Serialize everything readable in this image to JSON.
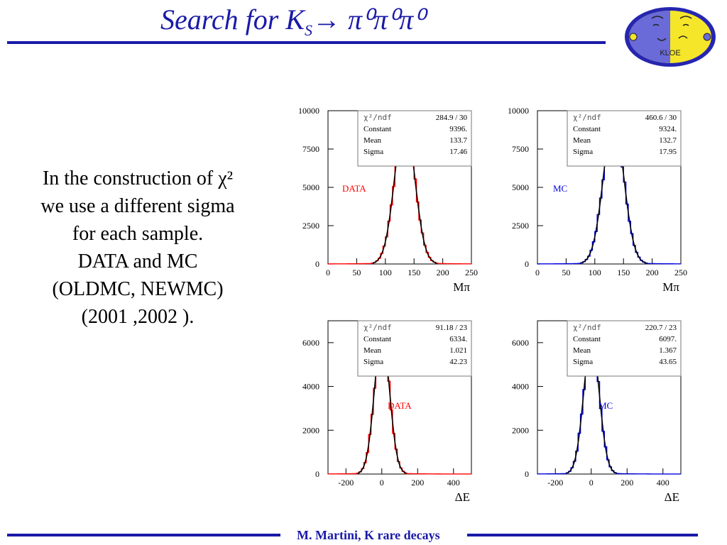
{
  "slide": {
    "title_main": "Search for K",
    "title_sub": "S",
    "title_tail": "→ π⁰π⁰π⁰",
    "body_lines": [
      "In the construction of χ²",
      "we use a different sigma",
      "for each  sample.",
      "DATA and MC",
      "(OLDMC, NEWMC)",
      "(2001 ,2002 )."
    ],
    "footer": "M. Martini, K rare decays",
    "colors": {
      "title": "#1a1aa8",
      "data": "#ff0000",
      "mc": "#0000dd",
      "fit": "#000000"
    }
  },
  "logo": {
    "text": "KLOE",
    "icon": "kloe-logo"
  },
  "chart_data": [
    {
      "type": "bar",
      "panel": "top-left",
      "label": "DATA",
      "label_color": "#ff0000",
      "series_color": "#ff0000",
      "xlabel": "Mπ",
      "xlim": [
        0,
        250
      ],
      "ylim": [
        0,
        10000
      ],
      "xticks": [
        0,
        50,
        100,
        150,
        200,
        250
      ],
      "yticks": [
        0,
        2500,
        5000,
        7500,
        10000
      ],
      "gaussian": {
        "constant": 9396,
        "mean": 133.7,
        "sigma": 17.46
      },
      "stats": [
        [
          "χ²/ndf",
          "284.9  /  30"
        ],
        [
          "Constant",
          "9396."
        ],
        [
          "Mean",
          "133.7"
        ],
        [
          "Sigma",
          "17.46"
        ]
      ]
    },
    {
      "type": "bar",
      "panel": "top-right",
      "label": "MC",
      "label_color": "#0000dd",
      "series_color": "#0000dd",
      "xlabel": "Mπ",
      "xlim": [
        0,
        250
      ],
      "ylim": [
        0,
        10000
      ],
      "xticks": [
        0,
        50,
        100,
        150,
        200,
        250
      ],
      "yticks": [
        0,
        2500,
        5000,
        7500,
        10000
      ],
      "gaussian": {
        "constant": 9324,
        "mean": 132.7,
        "sigma": 17.95
      },
      "stats": [
        [
          "χ²/ndf",
          "460.6  /  30"
        ],
        [
          "Constant",
          "9324."
        ],
        [
          "Mean",
          "132.7"
        ],
        [
          "Sigma",
          "17.95"
        ]
      ]
    },
    {
      "type": "bar",
      "panel": "bottom-left",
      "label": "DATA",
      "label_color": "#ff0000",
      "series_color": "#ff0000",
      "xlabel": "ΔE",
      "xlim": [
        -300,
        500
      ],
      "ylim": [
        0,
        7000
      ],
      "xticks": [
        -200,
        0,
        200,
        400
      ],
      "yticks": [
        0,
        2000,
        4000,
        6000
      ],
      "gaussian": {
        "constant": 6334,
        "mean": 1.021,
        "sigma": 42.23
      },
      "stats": [
        [
          "χ²/ndf",
          "91.18  /  23"
        ],
        [
          "Constant",
          "6334."
        ],
        [
          "Mean",
          "1.021"
        ],
        [
          "Sigma",
          "42.23"
        ]
      ]
    },
    {
      "type": "bar",
      "panel": "bottom-right",
      "label": "MC",
      "label_color": "#0000dd",
      "series_color": "#0000dd",
      "xlabel": "ΔE",
      "xlim": [
        -300,
        500
      ],
      "ylim": [
        0,
        7000
      ],
      "xticks": [
        -200,
        0,
        200,
        400
      ],
      "yticks": [
        0,
        2000,
        4000,
        6000
      ],
      "gaussian": {
        "constant": 6097,
        "mean": 1.367,
        "sigma": 43.65
      },
      "stats": [
        [
          "χ²/ndf",
          "220.7  /  23"
        ],
        [
          "Constant",
          "6097."
        ],
        [
          "Mean",
          "1.367"
        ],
        [
          "Sigma",
          "43.65"
        ]
      ]
    }
  ]
}
